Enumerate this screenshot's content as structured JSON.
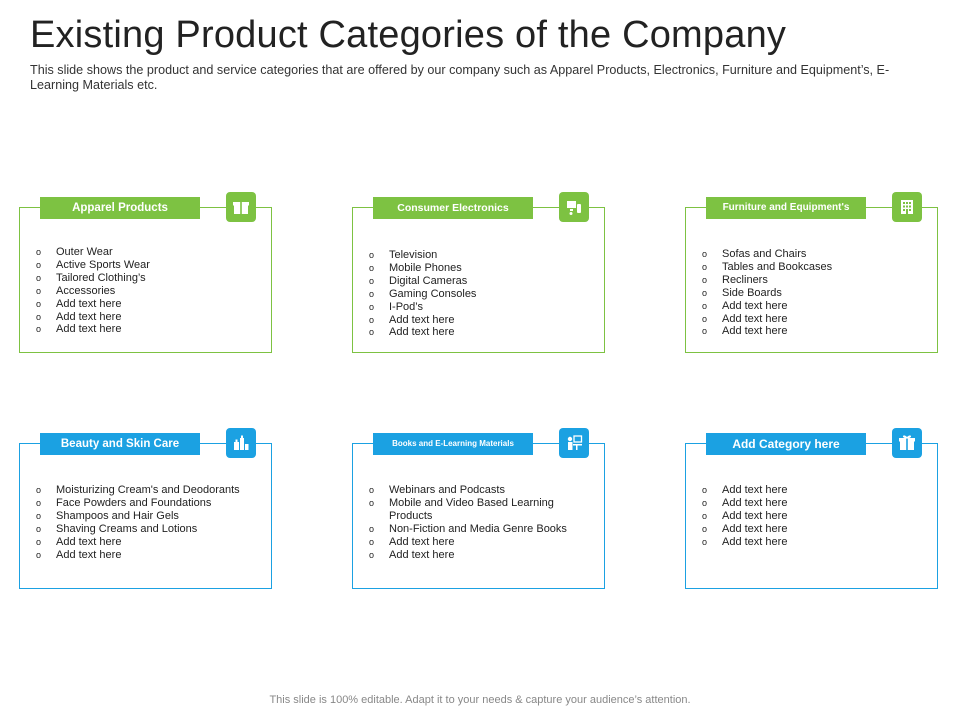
{
  "title": "Existing Product Categories of the Company",
  "subtitle": "This slide shows the product and service categories that are offered by our company such as Apparel Products, Electronics, Furniture and Equipment’s, E-Learning Materials etc.",
  "colors": {
    "green": "#7dc242",
    "blue": "#1ba1e2"
  },
  "cards": [
    {
      "label": "Apparel Products",
      "icon": "gift-box-icon",
      "items": [
        "Outer Wear",
        "Active Sports Wear",
        "Tailored Clothing’s",
        "Accessories",
        "Add text here",
        "Add text here",
        "Add text here"
      ]
    },
    {
      "label": "Consumer Electronics",
      "icon": "electronics-icon",
      "items": [
        "Television",
        "Mobile Phones",
        "Digital Cameras",
        "Gaming Consoles",
        "I-Pod’s",
        "Add text here",
        "Add text here"
      ]
    },
    {
      "label": "Furniture and Equipment's",
      "icon": "building-icon",
      "items": [
        "Sofas and Chairs",
        "Tables and Bookcases",
        "Recliners",
        "Side Boards",
        "Add text here",
        "Add text here",
        "Add text here"
      ]
    },
    {
      "label": "Beauty and Skin Care",
      "icon": "cosmetics-icon",
      "items": [
        "Moisturizing Cream's and Deodorants",
        "Face Powders and Foundations",
        "Shampoos and Hair Gels",
        "Shaving Creams and Lotions",
        "Add text here",
        "Add text here"
      ]
    },
    {
      "label": "Books and E-Learning Materials",
      "icon": "e-learning-icon",
      "items": [
        "Webinars and Podcasts",
        "Mobile and Video Based Learning Products",
        "Non-Fiction and Media Genre Books",
        "Add text here",
        "Add text here"
      ]
    },
    {
      "label": "Add Category here",
      "icon": "gift-box-icon",
      "items": [
        "Add text here",
        "Add text here",
        "Add text here",
        "Add text here",
        "Add text here"
      ]
    }
  ],
  "footer": "This slide is 100% editable. Adapt it to your needs & capture your audience’s attention."
}
